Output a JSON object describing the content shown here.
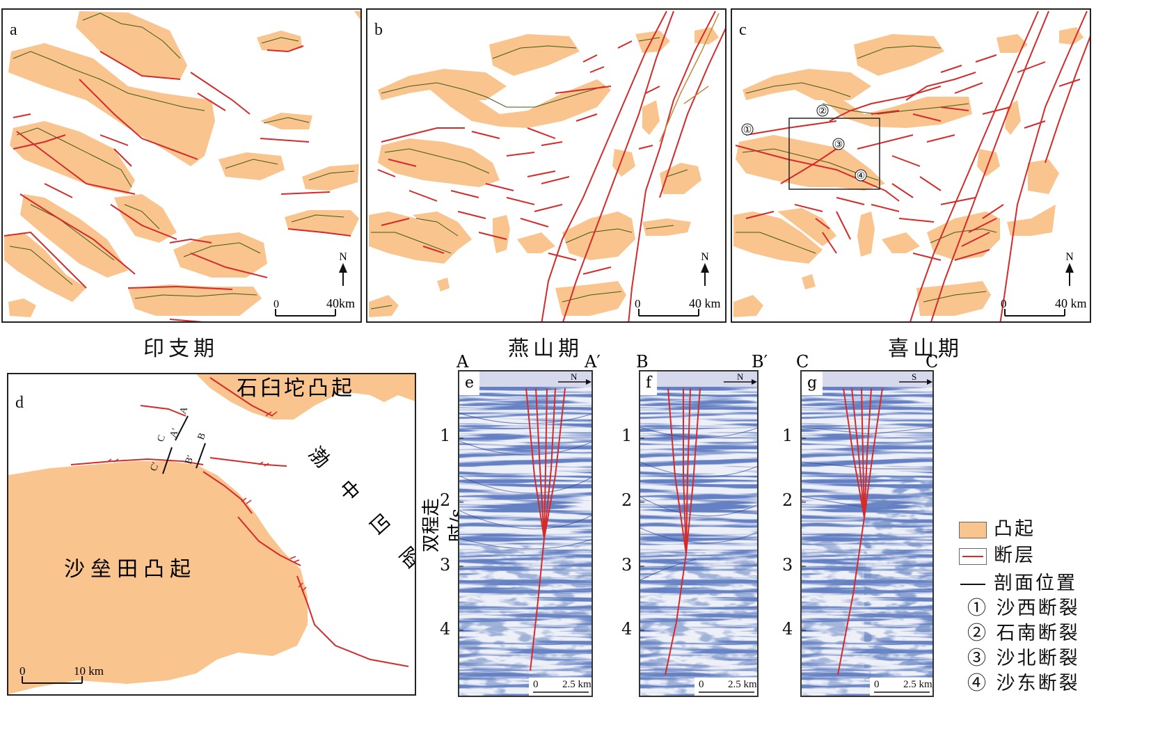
{
  "panels": {
    "a": {
      "label": "a",
      "caption": "印支期"
    },
    "b": {
      "label": "b",
      "caption": "燕山期"
    },
    "c": {
      "label": "c",
      "caption": "喜山期"
    },
    "d": {
      "label": "d"
    }
  },
  "map_common": {
    "north": "N",
    "scale_zero": "0",
    "scale_a": "40km",
    "scale_bc": "40 km",
    "colors": {
      "uplift": "#F9C48D",
      "fault": "#D42A2A",
      "section": "#111111",
      "ridge": "#3E5A14"
    }
  },
  "panel_c_markers": [
    "①",
    "②",
    "③",
    "④"
  ],
  "panel_d": {
    "uplift_north": "石臼坨凸起",
    "uplift_south": "沙垒田凸起",
    "sag": "渤 中 凹 陷",
    "sections": [
      "A",
      "A′",
      "B",
      "B′",
      "C",
      "C′"
    ],
    "scale_zero": "0",
    "scale_end": "10 km"
  },
  "seismic": {
    "y_axis_title": "双程走时/s",
    "ticks": [
      "1",
      "2",
      "3",
      "4"
    ],
    "scale_zero": "0",
    "scale_end": "2.5 km",
    "profiles": [
      {
        "label": "e",
        "left": "A",
        "right": "A′",
        "direction": "N"
      },
      {
        "label": "f",
        "left": "B",
        "right": "B′",
        "direction": "N"
      },
      {
        "label": "g",
        "left": "C",
        "right": "C′",
        "direction": "S"
      }
    ]
  },
  "legend": [
    {
      "symbol": "uplift",
      "text": "凸起"
    },
    {
      "symbol": "fault",
      "text": "断层"
    },
    {
      "symbol": "section",
      "text": "剖面位置"
    },
    {
      "symbol": "none",
      "text": "① 沙西断裂"
    },
    {
      "symbol": "none",
      "text": "② 石南断裂"
    },
    {
      "symbol": "none",
      "text": "③ 沙北断裂"
    },
    {
      "symbol": "none",
      "text": "④ 沙东断裂"
    }
  ]
}
